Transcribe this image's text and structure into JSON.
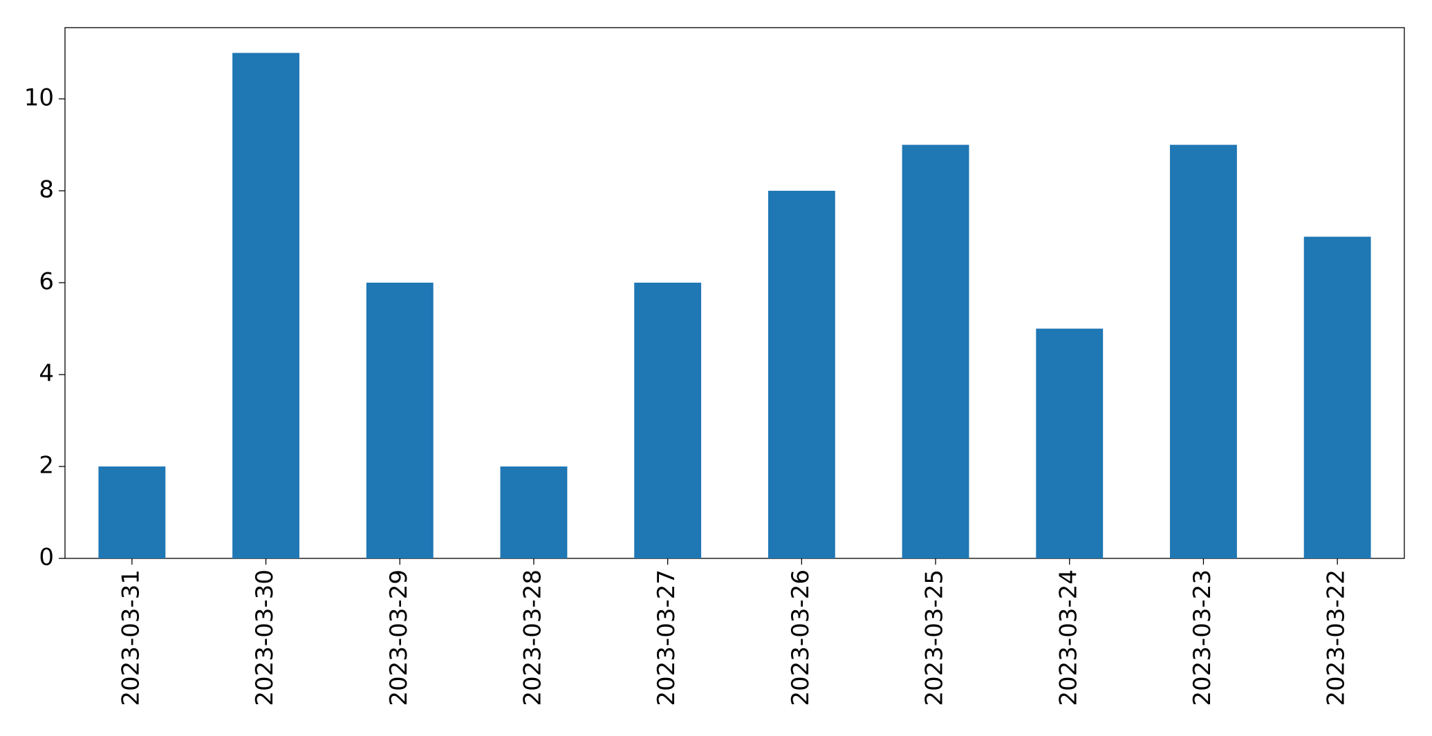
{
  "chart_data": {
    "type": "bar",
    "categories": [
      "2023-03-31",
      "2023-03-30",
      "2023-03-29",
      "2023-03-28",
      "2023-03-27",
      "2023-03-26",
      "2023-03-25",
      "2023-03-24",
      "2023-03-23",
      "2023-03-22"
    ],
    "values": [
      2,
      11,
      6,
      2,
      6,
      8,
      9,
      5,
      9,
      7
    ],
    "color": "#1f77b4",
    "ylim": [
      0,
      11.55
    ],
    "yticks": [
      0,
      2,
      4,
      6,
      8,
      10
    ],
    "grid": false
  }
}
